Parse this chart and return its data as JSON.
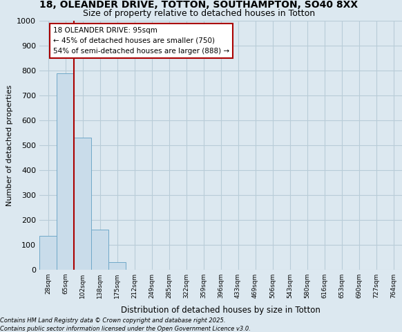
{
  "title1": "18, OLEANDER DRIVE, TOTTON, SOUTHAMPTON, SO40 8XX",
  "title2": "Size of property relative to detached houses in Totton",
  "xlabel": "Distribution of detached houses by size in Totton",
  "ylabel": "Number of detached properties",
  "categories": [
    "28sqm",
    "65sqm",
    "102sqm",
    "138sqm",
    "175sqm",
    "212sqm",
    "249sqm",
    "285sqm",
    "322sqm",
    "359sqm",
    "396sqm",
    "433sqm",
    "469sqm",
    "506sqm",
    "543sqm",
    "580sqm",
    "616sqm",
    "653sqm",
    "690sqm",
    "727sqm",
    "764sqm"
  ],
  "values": [
    135,
    790,
    530,
    160,
    30,
    0,
    0,
    0,
    0,
    0,
    0,
    0,
    0,
    0,
    0,
    0,
    0,
    0,
    0,
    0,
    0
  ],
  "bar_color": "#c9dcea",
  "bar_edge_color": "#6fa8c8",
  "red_line_x": 1.5,
  "red_line_color": "#aa0000",
  "annotation_text": "18 OLEANDER DRIVE: 95sqm\n← 45% of detached houses are smaller (750)\n54% of semi-detached houses are larger (888) →",
  "annotation_box_color": "#ffffff",
  "annotation_box_edge_color": "#aa0000",
  "ylim": [
    0,
    1000
  ],
  "yticks": [
    0,
    100,
    200,
    300,
    400,
    500,
    600,
    700,
    800,
    900,
    1000
  ],
  "background_color": "#dce8f0",
  "plot_bg_color": "#dce8f0",
  "grid_color": "#b8ccd8",
  "footnote1": "Contains HM Land Registry data © Crown copyright and database right 2025.",
  "footnote2": "Contains public sector information licensed under the Open Government Licence v3.0."
}
